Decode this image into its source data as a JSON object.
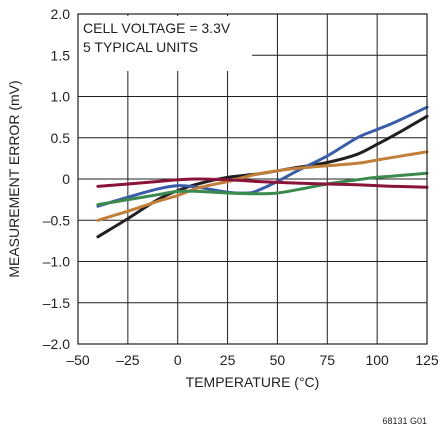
{
  "chart_data": {
    "type": "line",
    "title": "",
    "xlabel": "TEMPERATURE (°C)",
    "ylabel": "MEASUREMENT ERROR (mV)",
    "xlim": [
      -50,
      125
    ],
    "ylim": [
      -2.0,
      2.0
    ],
    "xticks": [
      "–50",
      "–25",
      "0",
      "25",
      "50",
      "75",
      "100",
      "125"
    ],
    "xtick_values": [
      -50,
      -25,
      0,
      25,
      50,
      75,
      100,
      125
    ],
    "yticks": [
      "2.0",
      "1.5",
      "1.0",
      "0.5",
      "0",
      "–0.5",
      "–1.0",
      "–1.5",
      "–2.0"
    ],
    "ytick_values": [
      2.0,
      1.5,
      1.0,
      0.5,
      0,
      -0.5,
      -1.0,
      -1.5,
      -2.0
    ],
    "grid": true,
    "annotations": [
      "CELL VOLTAGE = 3.3V",
      "5 TYPICAL UNITS"
    ],
    "figure_id": "68131 G01",
    "series": [
      {
        "color": "#231f20",
        "x": [
          -40,
          -25,
          -10,
          0,
          10,
          25,
          40,
          50,
          60,
          75,
          90,
          100,
          110,
          125
        ],
        "y": [
          -0.7,
          -0.48,
          -0.25,
          -0.14,
          -0.06,
          0.02,
          0.06,
          0.1,
          0.14,
          0.2,
          0.3,
          0.42,
          0.55,
          0.76
        ]
      },
      {
        "color": "#3a5da7",
        "x": [
          -40,
          -25,
          -10,
          0,
          10,
          25,
          35,
          40,
          50,
          60,
          75,
          90,
          100,
          110,
          125
        ],
        "y": [
          -0.33,
          -0.22,
          -0.12,
          -0.08,
          -0.1,
          -0.16,
          -0.17,
          -0.14,
          -0.03,
          0.1,
          0.28,
          0.5,
          0.6,
          0.7,
          0.87
        ]
      },
      {
        "color": "#c27f3a",
        "x": [
          -40,
          -25,
          -10,
          0,
          10,
          25,
          40,
          50,
          60,
          75,
          90,
          100,
          110,
          125
        ],
        "y": [
          -0.5,
          -0.39,
          -0.27,
          -0.2,
          -0.11,
          -0.03,
          0.06,
          0.1,
          0.13,
          0.16,
          0.19,
          0.23,
          0.27,
          0.33
        ]
      },
      {
        "color": "#3a8a4e",
        "x": [
          -40,
          -25,
          -10,
          0,
          10,
          25,
          40,
          50,
          60,
          75,
          90,
          100,
          110,
          125
        ],
        "y": [
          -0.31,
          -0.25,
          -0.19,
          -0.15,
          -0.15,
          -0.17,
          -0.18,
          -0.17,
          -0.13,
          -0.06,
          -0.01,
          0.02,
          0.04,
          0.07
        ]
      },
      {
        "color": "#8a1538",
        "x": [
          -40,
          -25,
          -10,
          0,
          10,
          25,
          40,
          50,
          60,
          75,
          90,
          100,
          110,
          125
        ],
        "y": [
          -0.09,
          -0.06,
          -0.03,
          -0.01,
          0.0,
          -0.01,
          -0.03,
          -0.04,
          -0.05,
          -0.06,
          -0.07,
          -0.08,
          -0.09,
          -0.1
        ]
      }
    ]
  }
}
